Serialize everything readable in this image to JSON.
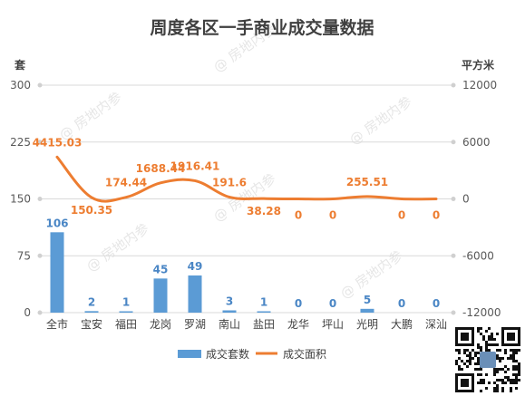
{
  "chart_data": {
    "type": "bar",
    "title": "周度各区一手商业成交量数据",
    "ylabel_left": "套",
    "ylabel_right": "平方米",
    "categories": [
      "全市",
      "宝安",
      "福田",
      "龙岗",
      "罗湖",
      "南山",
      "盐田",
      "龙华",
      "坪山",
      "光明",
      "大鹏",
      "深汕"
    ],
    "y_left_ticks": [
      "300",
      "225",
      "150",
      "75",
      "0"
    ],
    "y_right_ticks": [
      "12000",
      "6000",
      "0",
      "-6000",
      "-12000"
    ],
    "ylim_left": [
      0,
      300
    ],
    "ylim_right": [
      -12000,
      12000
    ],
    "series": [
      {
        "name": "成交套数",
        "type": "bar",
        "axis": "left",
        "color": "#5b9bd5",
        "values": [
          106,
          2,
          1,
          45,
          49,
          3,
          1,
          0,
          0,
          5,
          0,
          0
        ],
        "labels": [
          "106",
          "2",
          "1",
          "45",
          "49",
          "3",
          "1",
          "0",
          "0",
          "5",
          "0",
          "0"
        ]
      },
      {
        "name": "成交面积",
        "type": "line",
        "axis": "right",
        "color": "#ed7d31",
        "values": [
          4415.03,
          150.35,
          174.44,
          1688.44,
          1916.41,
          191.6,
          38.28,
          0,
          0,
          255.51,
          0,
          0
        ],
        "labels": [
          "4415.03",
          "150.35",
          "174.44",
          "1688.44",
          "1916.41",
          "191.6",
          "38.28",
          "0",
          "0",
          "255.51",
          "0",
          "0"
        ]
      }
    ],
    "grid": true,
    "legend_position": "bottom"
  },
  "watermark": "@ 房地内参"
}
